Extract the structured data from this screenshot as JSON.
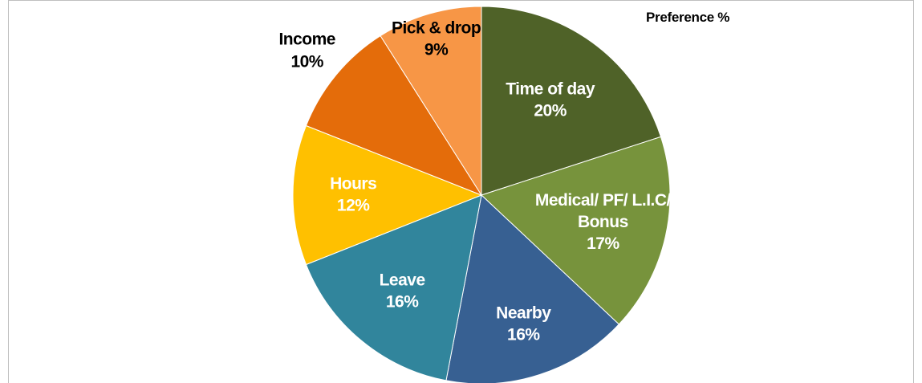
{
  "chart_data": {
    "type": "pie",
    "title": "Preference %",
    "categories": [
      "Time of day",
      "Medical/ PF/ L.I.C/ Bonus",
      "Nearby",
      "Leave",
      "Hours",
      "Income",
      "Pick & drop"
    ],
    "values": [
      20,
      17,
      16,
      16,
      12,
      10,
      9
    ],
    "value_labels": [
      "20%",
      "17%",
      "16%",
      "16%",
      "12%",
      "10%",
      "9%"
    ],
    "colors": [
      "#4f6228",
      "#77933c",
      "#376092",
      "#31859c",
      "#ffc000",
      "#e46c0a",
      "#f79646"
    ]
  }
}
